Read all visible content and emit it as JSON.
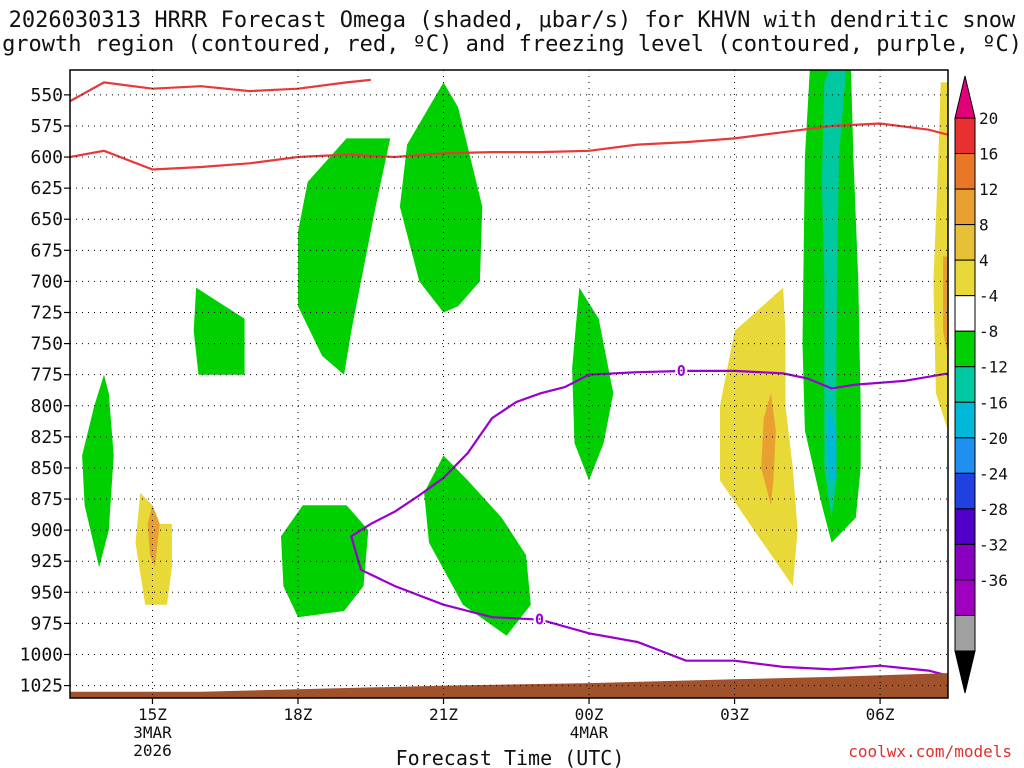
{
  "title_line1": "2026030313 HRRR Forecast Omega (shaded, μbar/s) for KHVN with dendritic snow",
  "title_line2": "growth region (contoured, red, ºC) and freezing level (contoured, purple, ºC)",
  "xlabel": "Forecast Time (UTC)",
  "watermark": "coolwx.com/models",
  "colors": {
    "green": "#00d000",
    "teal": "#00c8a0",
    "cyan": "#00b8d8",
    "yellow": "#e8d838",
    "orange": "#e8a030",
    "red_contour": "#e83838",
    "purple_contour": "#9a00d0",
    "terrain": "#a0522d",
    "grid": "#000000"
  },
  "chart_data": {
    "type": "heatmap",
    "time_axis": {
      "range_hours": [
        13.3,
        31.4
      ],
      "ticks": [
        {
          "hour": 15,
          "label": "15Z",
          "sub": [
            "3MAR",
            "2026"
          ]
        },
        {
          "hour": 18,
          "label": "18Z",
          "sub": []
        },
        {
          "hour": 21,
          "label": "21Z",
          "sub": []
        },
        {
          "hour": 24,
          "label": "00Z",
          "sub": [
            "4MAR"
          ]
        },
        {
          "hour": 27,
          "label": "03Z",
          "sub": []
        },
        {
          "hour": 30,
          "label": "06Z",
          "sub": []
        }
      ]
    },
    "pressure_axis": {
      "range_mb": [
        1035,
        530
      ],
      "ticks": [
        "550",
        "575",
        "600",
        "625",
        "650",
        "675",
        "700",
        "725",
        "750",
        "775",
        "800",
        "825",
        "850",
        "875",
        "900",
        "925",
        "950",
        "975",
        "1000",
        "1025"
      ]
    },
    "colorbar": {
      "labels": [
        "20",
        "16",
        "12",
        "8",
        "4",
        "-4",
        "-8",
        "-12",
        "-16",
        "-20",
        "-24",
        "-28",
        "-32",
        "-36"
      ],
      "bins": [
        "#e0007a",
        "#e83030",
        "#e87828",
        "#e8a030",
        "#e8c038",
        "#e8d838",
        "#ffffff",
        "#00d000",
        "#00c8a0",
        "#00b8d8",
        "#1f90f0",
        "#2040e0",
        "#5000c8",
        "#8a00c0",
        "#a000c0",
        "#a0a0a0",
        "#000000"
      ]
    },
    "omega_regions": [
      {
        "name": "green-0",
        "color": "green",
        "points": [
          [
            14.0,
            775
          ],
          [
            13.8,
            800
          ],
          [
            13.55,
            840
          ],
          [
            13.6,
            880
          ],
          [
            13.9,
            930
          ],
          [
            14.1,
            900
          ],
          [
            14.2,
            840
          ],
          [
            14.1,
            790
          ]
        ]
      },
      {
        "name": "yellow-1",
        "color": "yellow",
        "points": [
          [
            15.0,
            880
          ],
          [
            15.15,
            895
          ],
          [
            15.4,
            895
          ],
          [
            15.4,
            930
          ],
          [
            15.3,
            960
          ],
          [
            14.85,
            960
          ],
          [
            14.65,
            910
          ],
          [
            14.75,
            870
          ]
        ]
      },
      {
        "name": "orange-2",
        "color": "orange",
        "points": [
          [
            15.0,
            880
          ],
          [
            15.15,
            895
          ],
          [
            15.05,
            930
          ],
          [
            14.95,
            920
          ],
          [
            14.9,
            895
          ]
        ]
      },
      {
        "name": "green-3",
        "color": "green",
        "points": [
          [
            15.9,
            705
          ],
          [
            16.9,
            730
          ],
          [
            16.9,
            775
          ],
          [
            15.95,
            775
          ],
          [
            15.85,
            740
          ]
        ]
      },
      {
        "name": "green-4",
        "color": "green",
        "points": [
          [
            19.0,
            585
          ],
          [
            19.9,
            585
          ],
          [
            19.6,
            640
          ],
          [
            19.3,
            700
          ],
          [
            19.1,
            740
          ],
          [
            18.95,
            775
          ],
          [
            18.5,
            760
          ],
          [
            18.0,
            720
          ],
          [
            18.0,
            660
          ],
          [
            18.2,
            620
          ]
        ]
      },
      {
        "name": "green-5",
        "color": "green",
        "points": [
          [
            21.0,
            540
          ],
          [
            21.3,
            560
          ],
          [
            21.55,
            600
          ],
          [
            21.8,
            640
          ],
          [
            21.75,
            700
          ],
          [
            21.3,
            720
          ],
          [
            21.0,
            725
          ],
          [
            20.5,
            700
          ],
          [
            20.1,
            640
          ],
          [
            20.25,
            590
          ]
        ]
      },
      {
        "name": "green-6",
        "color": "green",
        "points": [
          [
            18.1,
            880
          ],
          [
            19.0,
            880
          ],
          [
            19.45,
            900
          ],
          [
            19.35,
            945
          ],
          [
            18.95,
            965
          ],
          [
            18.0,
            970
          ],
          [
            17.7,
            945
          ],
          [
            17.65,
            905
          ]
        ]
      },
      {
        "name": "green-7",
        "color": "green",
        "points": [
          [
            21.0,
            840
          ],
          [
            21.5,
            860
          ],
          [
            22.2,
            890
          ],
          [
            22.7,
            920
          ],
          [
            22.8,
            960
          ],
          [
            22.3,
            985
          ],
          [
            21.4,
            960
          ],
          [
            20.7,
            910
          ],
          [
            20.6,
            870
          ]
        ]
      },
      {
        "name": "green-8",
        "color": "green",
        "points": [
          [
            23.8,
            705
          ],
          [
            24.2,
            730
          ],
          [
            24.5,
            790
          ],
          [
            24.3,
            830
          ],
          [
            24.0,
            860
          ],
          [
            23.7,
            830
          ],
          [
            23.65,
            770
          ]
        ]
      },
      {
        "name": "yellow-9",
        "color": "yellow",
        "points": [
          [
            28.0,
            705
          ],
          [
            28.05,
            740
          ],
          [
            28.05,
            800
          ],
          [
            28.2,
            850
          ],
          [
            28.3,
            900
          ],
          [
            28.2,
            945
          ],
          [
            27.4,
            900
          ],
          [
            26.7,
            860
          ],
          [
            26.7,
            800
          ],
          [
            27.0,
            740
          ]
        ]
      },
      {
        "name": "orange-10",
        "color": "orange",
        "points": [
          [
            27.75,
            790
          ],
          [
            27.85,
            820
          ],
          [
            27.8,
            860
          ],
          [
            27.75,
            880
          ],
          [
            27.55,
            850
          ],
          [
            27.6,
            810
          ]
        ]
      },
      {
        "name": "green-11",
        "color": "green",
        "points": [
          [
            28.55,
            530
          ],
          [
            29.4,
            530
          ],
          [
            29.45,
            600
          ],
          [
            29.55,
            700
          ],
          [
            29.6,
            800
          ],
          [
            29.6,
            850
          ],
          [
            29.5,
            890
          ],
          [
            29.0,
            910
          ],
          [
            28.8,
            880
          ],
          [
            28.45,
            820
          ],
          [
            28.4,
            750
          ],
          [
            28.45,
            600
          ]
        ]
      },
      {
        "name": "teal-12",
        "color": "teal",
        "points": [
          [
            28.95,
            530
          ],
          [
            29.3,
            530
          ],
          [
            29.15,
            600
          ],
          [
            29.1,
            750
          ],
          [
            29.1,
            860
          ],
          [
            29.0,
            890
          ],
          [
            28.85,
            850
          ],
          [
            28.85,
            700
          ],
          [
            28.8,
            620
          ],
          [
            28.85,
            540
          ]
        ]
      },
      {
        "name": "cyan-13",
        "color": "cyan",
        "points": [
          [
            28.95,
            800
          ],
          [
            29.1,
            820
          ],
          [
            29.1,
            860
          ],
          [
            28.95,
            860
          ],
          [
            28.9,
            830
          ]
        ]
      },
      {
        "name": "yellow-14",
        "color": "yellow",
        "points": [
          [
            31.25,
            540
          ],
          [
            31.4,
            540
          ],
          [
            31.4,
            820
          ],
          [
            31.15,
            790
          ],
          [
            31.1,
            700
          ],
          [
            31.2,
            600
          ]
        ]
      },
      {
        "name": "orange-15",
        "color": "orange",
        "points": [
          [
            31.3,
            680
          ],
          [
            31.4,
            680
          ],
          [
            31.4,
            760
          ],
          [
            31.3,
            740
          ]
        ]
      }
    ],
    "dgz_contours": [
      {
        "name": "upper",
        "points": [
          [
            13.3,
            555
          ],
          [
            14.0,
            540
          ],
          [
            15.0,
            545
          ],
          [
            16.0,
            543
          ],
          [
            17.0,
            547
          ],
          [
            18.0,
            545
          ],
          [
            19.0,
            540
          ],
          [
            19.5,
            538
          ]
        ]
      },
      {
        "name": "lower",
        "points": [
          [
            13.3,
            600
          ],
          [
            14.0,
            595
          ],
          [
            15.0,
            610
          ],
          [
            16.0,
            608
          ],
          [
            17.0,
            605
          ],
          [
            18.0,
            600
          ],
          [
            19.0,
            598
          ],
          [
            20.0,
            600
          ],
          [
            21.0,
            597
          ],
          [
            22.0,
            596
          ],
          [
            23.0,
            596
          ],
          [
            24.0,
            595
          ],
          [
            25.0,
            590
          ],
          [
            26.0,
            588
          ],
          [
            27.0,
            585
          ],
          [
            28.0,
            580
          ],
          [
            29.0,
            575
          ],
          [
            30.0,
            573
          ],
          [
            31.0,
            578
          ],
          [
            31.4,
            582
          ]
        ]
      }
    ],
    "freezing_level": {
      "value": "0",
      "points": [
        [
          31.4,
          774
        ],
        [
          30.5,
          780
        ],
        [
          29.5,
          783
        ],
        [
          29.0,
          786
        ],
        [
          28.5,
          778
        ],
        [
          28.0,
          774
        ],
        [
          27.0,
          772
        ],
        [
          26.0,
          772
        ],
        [
          25.0,
          773
        ],
        [
          24.0,
          775
        ],
        [
          23.5,
          785
        ],
        [
          23.0,
          790
        ],
        [
          22.5,
          797
        ],
        [
          22.0,
          810
        ],
        [
          21.5,
          838
        ],
        [
          21.0,
          858
        ],
        [
          20.5,
          872
        ],
        [
          20.0,
          885
        ],
        [
          19.5,
          895
        ],
        [
          19.1,
          905
        ],
        [
          19.3,
          932
        ],
        [
          20.0,
          945
        ],
        [
          21.0,
          960
        ],
        [
          22.0,
          970
        ],
        [
          23.0,
          972
        ],
        [
          24.0,
          983
        ],
        [
          25.0,
          990
        ],
        [
          26.0,
          1005
        ],
        [
          27.0,
          1005
        ],
        [
          28.0,
          1010
        ],
        [
          29.0,
          1012
        ],
        [
          30.0,
          1009
        ],
        [
          31.0,
          1013
        ],
        [
          31.4,
          1017
        ]
      ],
      "labels": [
        [
          25.9,
          772
        ],
        [
          22.98,
          972
        ]
      ]
    },
    "terrain": [
      [
        13.3,
        1035
      ],
      [
        13.3,
        1030
      ],
      [
        16.0,
        1030
      ],
      [
        18.0,
        1028
      ],
      [
        21.0,
        1025
      ],
      [
        24.0,
        1023
      ],
      [
        27.0,
        1020
      ],
      [
        29.0,
        1018
      ],
      [
        31.4,
        1015
      ],
      [
        31.4,
        1035
      ]
    ]
  }
}
